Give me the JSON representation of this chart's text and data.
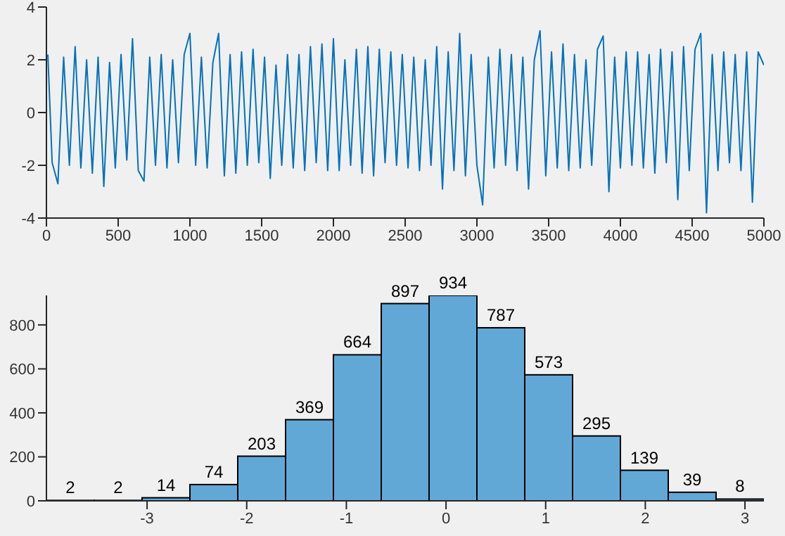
{
  "chart_data": [
    {
      "type": "line",
      "x": [
        10,
        40,
        80,
        120,
        160,
        200,
        240,
        280,
        320,
        360,
        400,
        440,
        480,
        520,
        560,
        600,
        640,
        680,
        720,
        760,
        800,
        840,
        880,
        920,
        960,
        1000,
        1040,
        1080,
        1120,
        1160,
        1200,
        1240,
        1280,
        1320,
        1360,
        1400,
        1440,
        1480,
        1520,
        1560,
        1600,
        1640,
        1680,
        1720,
        1760,
        1800,
        1840,
        1880,
        1920,
        1960,
        2000,
        2040,
        2080,
        2120,
        2160,
        2200,
        2240,
        2280,
        2320,
        2360,
        2400,
        2440,
        2480,
        2520,
        2560,
        2600,
        2640,
        2680,
        2720,
        2760,
        2800,
        2840,
        2880,
        2920,
        2960,
        3000,
        3040,
        3080,
        3120,
        3160,
        3200,
        3240,
        3280,
        3320,
        3360,
        3400,
        3440,
        3480,
        3520,
        3560,
        3600,
        3640,
        3680,
        3720,
        3760,
        3800,
        3840,
        3880,
        3920,
        3960,
        4000,
        4040,
        4080,
        4120,
        4160,
        4200,
        4240,
        4280,
        4320,
        4360,
        4400,
        4440,
        4480,
        4520,
        4560,
        4600,
        4640,
        4680,
        4720,
        4760,
        4800,
        4840,
        4880,
        4920,
        4960,
        5000
      ],
      "series": [
        {
          "color": "#0072bd",
          "values": [
            2.2,
            -1.9,
            -2.7,
            2.1,
            -2.0,
            2.5,
            -2.1,
            2.0,
            -2.3,
            2.1,
            -2.8,
            1.9,
            -2.1,
            2.2,
            -1.8,
            2.8,
            -2.2,
            -2.6,
            2.1,
            -2.0,
            2.2,
            -2.1,
            2.0,
            -1.9,
            2.2,
            3.0,
            -2.0,
            2.1,
            -2.1,
            1.9,
            3.0,
            -2.4,
            2.2,
            -2.3,
            2.3,
            -2.0,
            2.4,
            -1.9,
            2.1,
            -2.5,
            1.8,
            -2.0,
            2.2,
            -2.1,
            2.2,
            -2.2,
            2.5,
            -1.9,
            2.6,
            -2.2,
            2.8,
            -2.2,
            2.0,
            -2.0,
            2.4,
            -2.3,
            2.5,
            -2.4,
            2.4,
            -1.9,
            2.3,
            -2.0,
            2.2,
            -2.1,
            2.1,
            -2.2,
            2.0,
            -2.0,
            2.5,
            -2.9,
            2.3,
            -2.2,
            3.0,
            -2.4,
            2.2,
            -2.0,
            -3.5,
            2.1,
            -2.1,
            2.4,
            -2.0,
            2.2,
            -2.2,
            2.1,
            -2.9,
            2.0,
            3.1,
            -2.4,
            2.3,
            -2.1,
            2.6,
            -2.2,
            2.2,
            -2.1,
            2.0,
            -2.0,
            2.4,
            2.9,
            -3.0,
            2.1,
            -2.1,
            2.3,
            -2.0,
            2.3,
            -2.1,
            2.2,
            -2.3,
            2.4,
            -1.9,
            2.3,
            -3.3,
            2.5,
            -2.2,
            2.4,
            3.0,
            -3.8,
            2.2,
            -2.2,
            2.3,
            -1.9,
            2.2,
            -2.2,
            2.3,
            -3.4,
            2.3,
            1.8
          ]
        }
      ],
      "xlim": [
        0,
        5000
      ],
      "xticks": [
        0,
        500,
        1000,
        1500,
        2000,
        2500,
        3000,
        3500,
        4000,
        4500,
        5000
      ],
      "ylim": [
        -4,
        4
      ],
      "yticks": [
        -4,
        -2,
        0,
        2,
        4
      ],
      "grid": false,
      "legend": false,
      "marker": "none",
      "line_style": "solid"
    },
    {
      "type": "histogram",
      "bins": [
        -4.01,
        -3.53,
        -3.05,
        -2.57,
        -2.09,
        -1.61,
        -1.13,
        -0.65,
        -0.17,
        0.31,
        0.79,
        1.27,
        1.75,
        2.23,
        2.71,
        3.19
      ],
      "values": [
        2,
        2,
        14,
        74,
        203,
        369,
        664,
        897,
        934,
        787,
        573,
        295,
        139,
        39,
        8
      ],
      "color": "#62a8d6",
      "xlim": [
        -4.01,
        3.19
      ],
      "xticks": [
        -3,
        -2,
        -1,
        0,
        1,
        2,
        3
      ],
      "ylim": [
        0,
        934
      ],
      "yticks": [
        0,
        200,
        400,
        600,
        800
      ],
      "data_labels": true,
      "grid": false,
      "legend": false
    }
  ]
}
